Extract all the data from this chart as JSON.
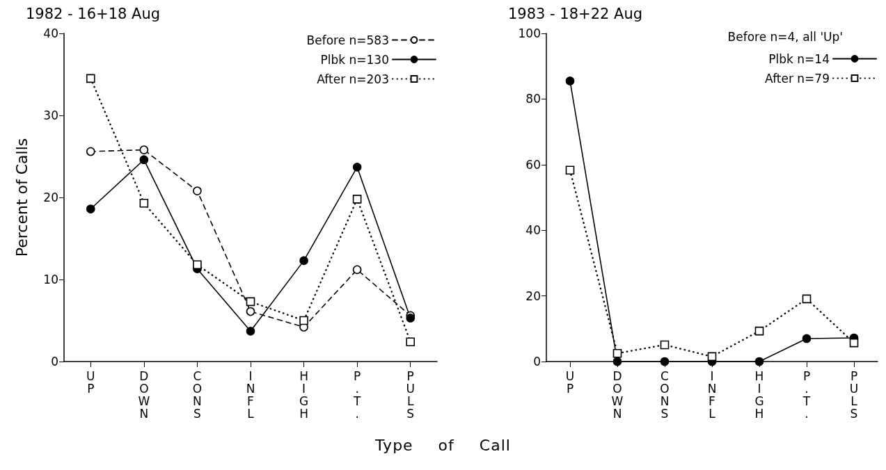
{
  "chart_data": [
    {
      "type": "line",
      "title": "1982 - 16+18 Aug",
      "ylabel": "Percent of Calls",
      "xlabel": "Type of Call",
      "categories": [
        "UP",
        "DOWN",
        "CONS",
        "INFL",
        "HIGH",
        "P.T.",
        "PULS"
      ],
      "series": [
        {
          "name": "Before n=583",
          "color": "#000000",
          "marker": "circle",
          "line_style": "dashed",
          "values": [
            25.6,
            25.8,
            20.8,
            6.1,
            4.2,
            11.2,
            5.6
          ]
        },
        {
          "name": "Plbk n=130",
          "color": "#000000",
          "marker": "circle",
          "line_style": "solid",
          "values": [
            18.6,
            24.6,
            11.3,
            3.7,
            12.3,
            23.7,
            5.3
          ]
        },
        {
          "name": "After n=203",
          "color": "#000000",
          "marker": "square",
          "line_style": "dotted",
          "values": [
            34.5,
            19.3,
            11.8,
            7.3,
            5.0,
            19.8,
            2.4
          ]
        }
      ],
      "ylim": [
        0,
        40
      ],
      "yticks": [
        0,
        10,
        20,
        30,
        40
      ],
      "grid": false,
      "legend": "top right"
    },
    {
      "type": "line",
      "title": "1983 - 18+22 Aug",
      "annotations": [
        "Before n=4, all 'Up'"
      ],
      "categories": [
        "UP",
        "DOWN",
        "CONS",
        "INFL",
        "HIGH",
        "P.T.",
        "PULS"
      ],
      "series": [
        {
          "name": "Plbk n=14",
          "color": "#000000",
          "marker": "circle",
          "line_style": "solid",
          "values": [
            85.5,
            0,
            0,
            0,
            0,
            7.0,
            7.2
          ]
        },
        {
          "name": "After n=79",
          "color": "#000000",
          "marker": "square",
          "line_style": "dotted",
          "values": [
            58.3,
            2.5,
            5.1,
            1.5,
            9.3,
            19.1,
            5.7
          ]
        }
      ],
      "ylim": [
        0,
        100
      ],
      "yticks": [
        0,
        20,
        40,
        60,
        80,
        100
      ],
      "grid": false,
      "legend": "top right"
    }
  ]
}
